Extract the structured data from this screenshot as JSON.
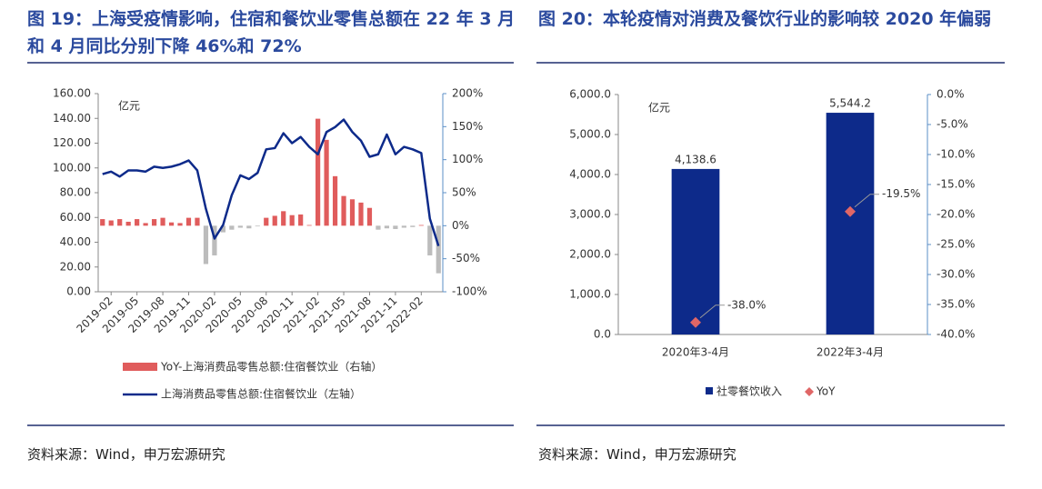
{
  "chart_data": [
    {
      "type": "combo",
      "title": "图 19：上海受疫情影响，住宿和餐饮业零售总额在 22 年 3 月和 4 月同比分别下降 46%和 72%",
      "unit": "亿元",
      "source": "资料来源：Wind，申万宏源研究",
      "categories": [
        null,
        "2019-02",
        null,
        null,
        "2019-05",
        null,
        null,
        "2019-08",
        null,
        null,
        "2019-11",
        null,
        null,
        "2020-02",
        null,
        null,
        "2020-05",
        null,
        null,
        "2020-08",
        null,
        null,
        "2020-11",
        null,
        null,
        "2021-02",
        null,
        null,
        "2021-05",
        null,
        null,
        "2021-08",
        null,
        null,
        "2021-11",
        null,
        null,
        "2022-02",
        null,
        null
      ],
      "ylim": [
        0,
        160
      ],
      "yticks": [
        {
          "value": 0,
          "label": "0.00"
        },
        {
          "value": 20,
          "label": "20.00"
        },
        {
          "value": 40,
          "label": "40.00"
        },
        {
          "value": 60,
          "label": "60.00"
        },
        {
          "value": 80,
          "label": "80.00"
        },
        {
          "value": 100,
          "label": "100.00"
        },
        {
          "value": 120,
          "label": "120.00"
        },
        {
          "value": 140,
          "label": "140.00"
        },
        {
          "value": 160,
          "label": "160.00"
        }
      ],
      "y2lim": [
        -100,
        200
      ],
      "y2ticks": [
        {
          "value": -100,
          "label": "-100%"
        },
        {
          "value": -50,
          "label": "-50%"
        },
        {
          "value": 0,
          "label": "0%"
        },
        {
          "value": 50,
          "label": "50%"
        },
        {
          "value": 100,
          "label": "100%"
        },
        {
          "value": 150,
          "label": "150%"
        },
        {
          "value": 200,
          "label": "200%"
        }
      ],
      "series": [
        {
          "name": "YoY-上海消费品零售总额:住宿餐饮业（右轴）",
          "type": "bar",
          "axis": "y2",
          "color": "#e05c5c",
          "negative_color": "#bcbcbc",
          "values": [
            10,
            8,
            10,
            6,
            10,
            4,
            10,
            12,
            5,
            4,
            12,
            12,
            -58,
            -45,
            -10,
            -6,
            -3,
            -4,
            -1,
            12,
            15,
            22,
            16,
            17,
            1,
            162,
            130,
            75,
            45,
            40,
            35,
            27,
            -6,
            -4,
            -5,
            -3,
            -2,
            1,
            -45,
            -72
          ]
        },
        {
          "name": "上海消费品零售总额:住宿餐饮业（左轴）",
          "type": "line",
          "color": "#0d2a8a",
          "values": [
            95,
            97,
            93,
            98,
            98,
            97,
            101,
            100,
            101,
            103,
            106,
            98,
            67,
            43,
            54,
            78,
            94,
            91,
            96,
            115,
            116,
            128,
            120,
            125,
            117,
            111,
            129,
            133,
            139,
            129,
            122,
            109,
            111,
            127,
            111,
            117,
            115,
            112,
            59,
            37
          ]
        }
      ]
    },
    {
      "type": "combo",
      "title": "图 20：本轮疫情对消费及餐饮行业的影响较 2020 年偏弱",
      "unit": "亿元",
      "source": "资料来源：Wind，申万宏源研究",
      "categories": [
        "2020年3-4月",
        "2022年3-4月"
      ],
      "ylim": [
        0,
        6000
      ],
      "yticks": [
        {
          "value": 0,
          "label": "0.0"
        },
        {
          "value": 1000,
          "label": "1,000.0"
        },
        {
          "value": 2000,
          "label": "2,000.0"
        },
        {
          "value": 3000,
          "label": "3,000.0"
        },
        {
          "value": 4000,
          "label": "4,000.0"
        },
        {
          "value": 5000,
          "label": "5,000.0"
        },
        {
          "value": 6000,
          "label": "6,000.0"
        }
      ],
      "y2lim": [
        -40,
        0
      ],
      "y2ticks": [
        {
          "value": -40,
          "label": "-40.0%"
        },
        {
          "value": -35,
          "label": "-35.0%"
        },
        {
          "value": -30,
          "label": "-30.0%"
        },
        {
          "value": -25,
          "label": "-25.0%"
        },
        {
          "value": -20,
          "label": "-20.0%"
        },
        {
          "value": -15,
          "label": "-15.0%"
        },
        {
          "value": -10,
          "label": "-10.0%"
        },
        {
          "value": -5,
          "label": "-5.0%"
        },
        {
          "value": 0,
          "label": "0.0%"
        }
      ],
      "series": [
        {
          "name": "社零餐饮收入",
          "type": "bar",
          "color": "#0d2a8a",
          "values": [
            4138.6,
            5544.2
          ],
          "value_labels": [
            "4,138.6",
            "5,544.2"
          ]
        },
        {
          "name": "YoY",
          "type": "scatter",
          "axis": "y2",
          "color": "#e06666",
          "values": [
            -38.0,
            -19.5
          ],
          "value_labels": [
            "-38.0%",
            "-19.5%"
          ]
        }
      ]
    }
  ]
}
